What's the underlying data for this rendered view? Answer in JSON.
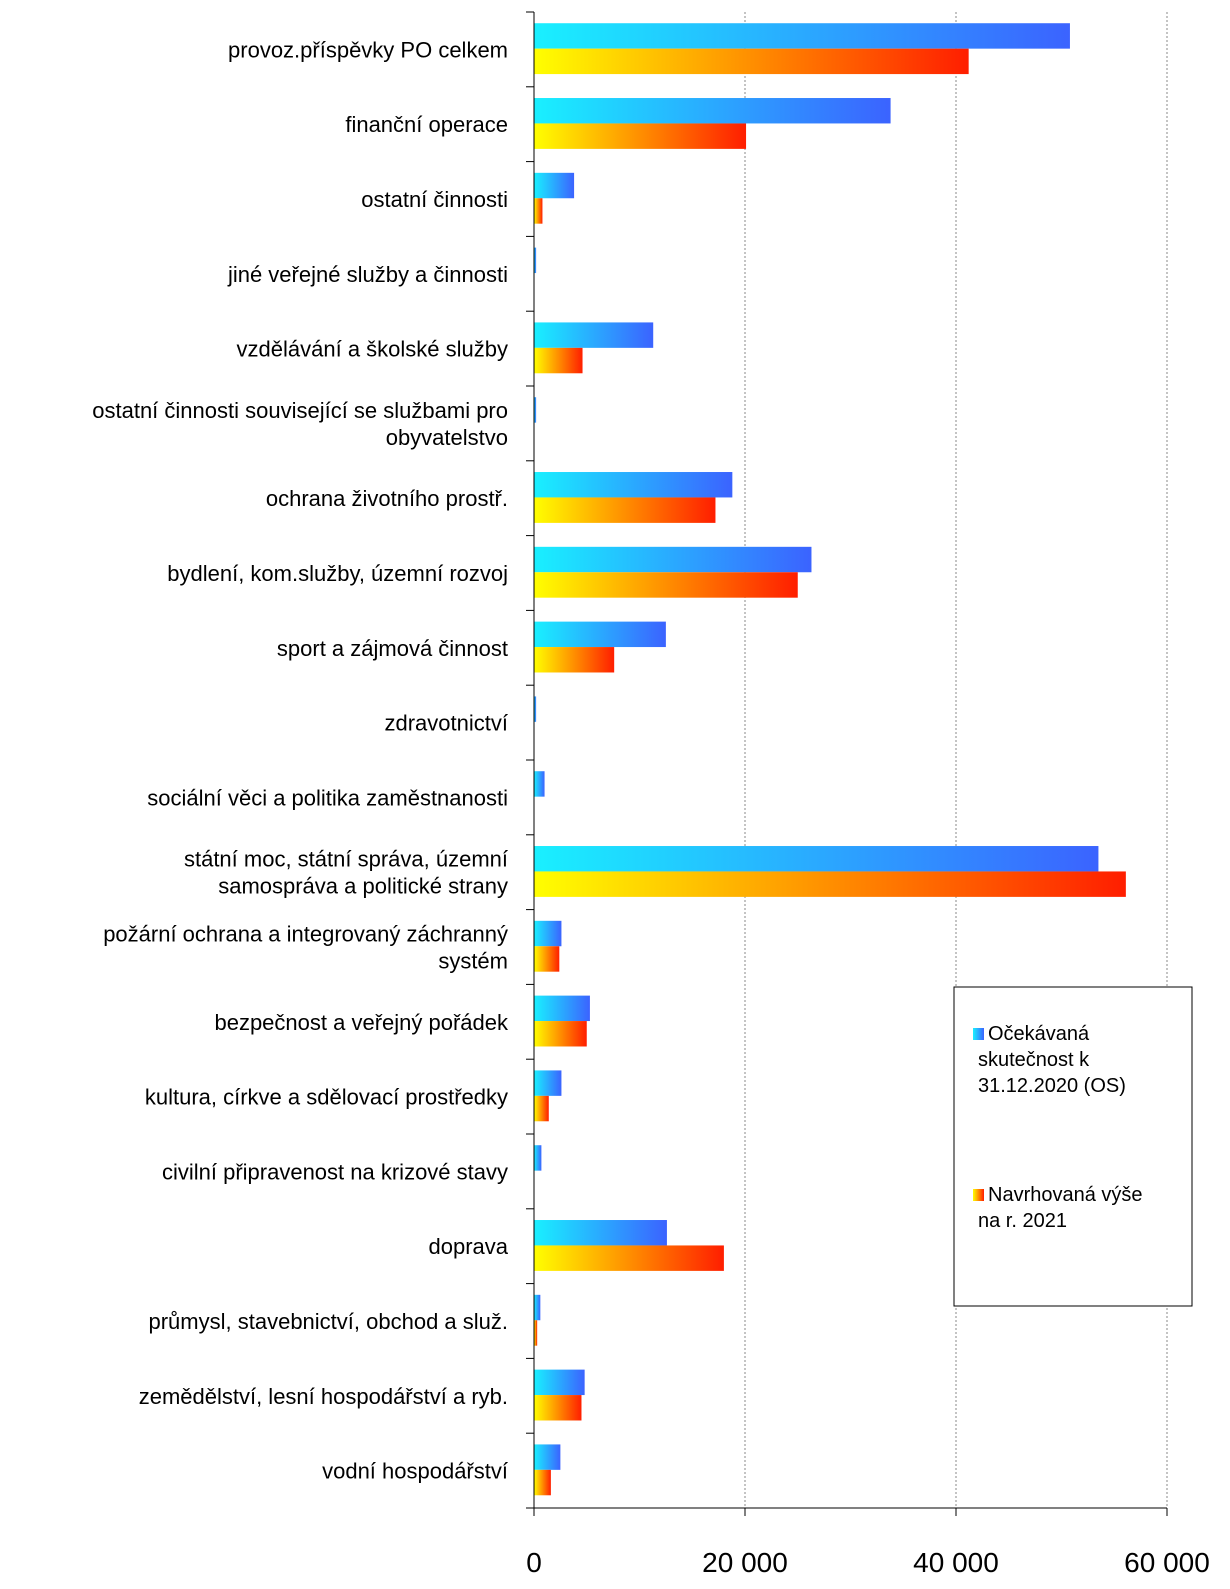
{
  "chart_data": {
    "type": "bar",
    "orientation": "horizontal",
    "categories": [
      "provoz.příspěvky PO celkem",
      "finanční operace",
      "ostatní činnosti",
      "jiné veřejné služby a činnosti",
      "vzdělávání a školské služby",
      "ostatní činnosti související se službami pro obyvatelstvo",
      "ochrana životního prostř.",
      "bydlení, kom.služby, územní rozvoj",
      "sport a zájmová činnost",
      "zdravotnictví",
      "sociální věci a politika zaměstnanosti",
      "státní moc, státní správa, územní samospráva a politické strany",
      "požární ochrana a integrovaný záchranný systém",
      "bezpečnost a veřejný pořádek",
      "kultura, církve a sdělovací prostředky",
      "civilní připravenost na krizové stavy",
      "doprava",
      "průmysl, stavebnictví, obchod a služ.",
      "zemědělství, lesní hospodářství a ryb.",
      "vodní hospodářství"
    ],
    "category_label_lines": [
      [
        "provoz.příspěvky PO celkem"
      ],
      [
        "finanční operace"
      ],
      [
        "ostatní činnosti"
      ],
      [
        "jiné veřejné služby a činnosti"
      ],
      [
        "vzdělávání a školské služby"
      ],
      [
        "ostatní činnosti související se službami pro",
        "obyvatelstvo"
      ],
      [
        "ochrana životního prostř."
      ],
      [
        "bydlení, kom.služby, územní rozvoj"
      ],
      [
        "sport a zájmová činnost"
      ],
      [
        "zdravotnictví"
      ],
      [
        "sociální věci a politika zaměstnanosti"
      ],
      [
        "státní moc, státní správa, územní",
        "samospráva a politické strany"
      ],
      [
        "požární ochrana a integrovaný záchranný",
        "systém"
      ],
      [
        "bezpečnost a veřejný pořádek"
      ],
      [
        "kultura, církve a sdělovací prostředky"
      ],
      [
        "civilní připravenost na krizové stavy"
      ],
      [
        "doprava"
      ],
      [
        "průmysl, stavebnictví, obchod a služ."
      ],
      [
        "zemědělství, lesní hospodářství a ryb."
      ],
      [
        "vodní hospodářství"
      ]
    ],
    "series": [
      {
        "name": "Očekávaná skutečnost k 31.12.2020 (OS)",
        "legend_lines": [
          "Očekávaná",
          "skutečnost k",
          "31.12.2020 (OS)"
        ],
        "values": [
          50800,
          33800,
          3800,
          200,
          11300,
          200,
          18800,
          26300,
          12500,
          200,
          1000,
          53500,
          2600,
          5300,
          2600,
          700,
          12600,
          600,
          4800,
          2500
        ],
        "gradient": [
          "#19f0ff",
          "#3b63ff"
        ]
      },
      {
        "name": "Navrhovaná výše na r. 2021",
        "legend_lines": [
          "Navrhovaná výše",
          "na r. 2021"
        ],
        "values": [
          41200,
          20100,
          800,
          0,
          4600,
          0,
          17200,
          25000,
          7600,
          0,
          0,
          56100,
          2400,
          5000,
          1400,
          0,
          18000,
          300,
          4500,
          1600
        ],
        "gradient": [
          "#ffff00",
          "#ff1e00"
        ]
      }
    ],
    "xlim": [
      0,
      60000
    ],
    "xticks": [
      0,
      20000,
      40000,
      60000
    ],
    "xtick_labels": [
      "0",
      "20 000",
      "40 000",
      "60 000"
    ],
    "grid": "vertical dotted lines at major ticks",
    "legend_position": "right",
    "title": "",
    "xlabel": "",
    "ylabel": ""
  }
}
